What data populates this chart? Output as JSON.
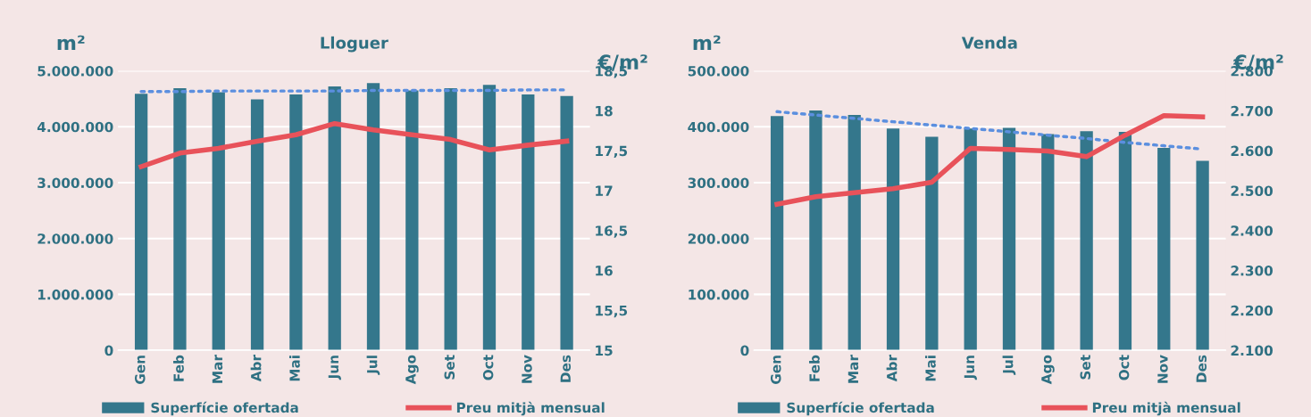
{
  "chart_data": [
    {
      "type": "bar",
      "title": "Lloguer",
      "ylabel": "m²",
      "y2label": "€/m²",
      "categories": [
        "Gen",
        "Feb",
        "Mar",
        "Abr",
        "Mai",
        "Jun",
        "Jul",
        "Ago",
        "Set",
        "Oct",
        "Nov",
        "Des"
      ],
      "series": [
        {
          "name": "Superfície ofertada",
          "color": "#34778c",
          "values": [
            4590000,
            4690000,
            4620000,
            4490000,
            4580000,
            4720000,
            4780000,
            4650000,
            4690000,
            4750000,
            4580000,
            4550000
          ]
        },
        {
          "name": "Preu mitjà mensual",
          "type": "line",
          "axis": "y2",
          "color": "#e8525a",
          "line_style": "solid",
          "values": [
            17.3,
            17.47,
            17.53,
            17.62,
            17.7,
            17.84,
            17.76,
            17.7,
            17.64,
            17.51,
            17.57,
            17.62
          ]
        },
        {
          "type": "line",
          "color": "#5b8fdf",
          "line_style": "dotted",
          "values": [
            4630000,
            4630000,
            4640000,
            4640000,
            4640000,
            4640000,
            4650000,
            4650000,
            4650000,
            4650000,
            4660000,
            4660000
          ]
        }
      ],
      "ylim": [
        0,
        5000000
      ],
      "yticks": [
        {
          "value": 0,
          "label": "0"
        },
        {
          "value": 1000000,
          "label": "1.000.000"
        },
        {
          "value": 2000000,
          "label": "2.000.000"
        },
        {
          "value": 3000000,
          "label": "3.000.000"
        },
        {
          "value": 4000000,
          "label": "4.000.000"
        },
        {
          "value": 5000000,
          "label": "5.000.000"
        }
      ],
      "y2lim": [
        15,
        18.5
      ],
      "y2ticks": [
        15,
        {
          "value": 15.5,
          "label": "15,5"
        },
        16,
        {
          "value": 16.5,
          "label": "16,5"
        },
        17,
        {
          "value": 17.5,
          "label": "17,5"
        },
        18,
        {
          "value": 18.5,
          "label": "18,5"
        }
      ],
      "grid": "y",
      "legend": "bottom"
    },
    {
      "type": "bar",
      "title": "Venda",
      "ylabel": "m²",
      "y2label": "€/m²",
      "categories": [
        "Gen",
        "Feb",
        "Mar",
        "Abr",
        "Mai",
        "Jun",
        "Jul",
        "Ago",
        "Set",
        "Oct",
        "Nov",
        "Des"
      ],
      "series": [
        {
          "name": "Superfície ofertada",
          "color": "#34778c",
          "values": [
            419000,
            429000,
            421000,
            397000,
            382000,
            397000,
            398000,
            387000,
            392000,
            391000,
            362000,
            339000
          ]
        },
        {
          "name": "Preu mitjà mensual",
          "type": "line",
          "axis": "y2",
          "color": "#e8525a",
          "line_style": "solid",
          "values": [
            2466,
            2485,
            2495,
            2505,
            2521,
            2606,
            2603,
            2599,
            2585,
            2639,
            2688,
            2685
          ]
        },
        {
          "type": "line",
          "color": "#5b8fdf",
          "line_style": "dotted",
          "values": [
            427000,
            421000,
            415000,
            409000,
            403000,
            397000,
            391000,
            385000,
            379000,
            372000,
            366000,
            360000
          ]
        }
      ],
      "ylim": [
        0,
        500000
      ],
      "yticks": [
        {
          "value": 0,
          "label": "0"
        },
        {
          "value": 100000,
          "label": "100.000"
        },
        {
          "value": 200000,
          "label": "200.000"
        },
        {
          "value": 300000,
          "label": "300.000"
        },
        {
          "value": 400000,
          "label": "400.000"
        },
        {
          "value": 500000,
          "label": "500.000"
        }
      ],
      "y2lim": [
        2100,
        2800
      ],
      "y2ticks": [
        {
          "value": 2100,
          "label": "2.100"
        },
        {
          "value": 2200,
          "label": "2.200"
        },
        {
          "value": 2300,
          "label": "2.300"
        },
        {
          "value": 2400,
          "label": "2.400"
        },
        {
          "value": 2500,
          "label": "2.500"
        },
        {
          "value": 2600,
          "label": "2.600"
        },
        {
          "value": 2700,
          "label": "2.700"
        },
        {
          "value": 2800,
          "label": "2.800"
        }
      ],
      "grid": "y",
      "legend": "bottom"
    }
  ]
}
